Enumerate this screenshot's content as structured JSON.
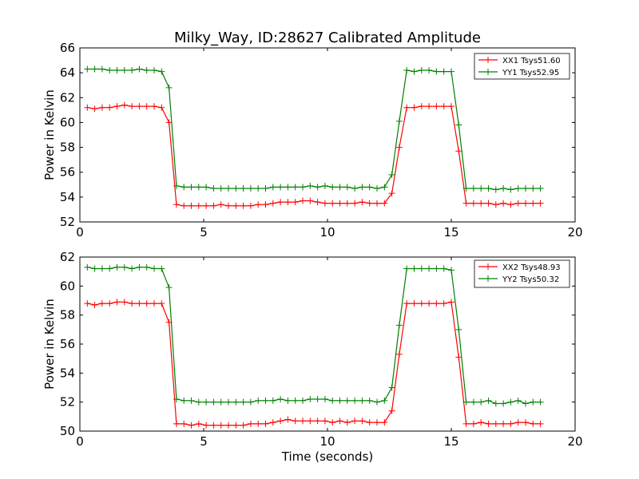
{
  "title": "Milky_Way, ID:28627 Calibrated Amplitude",
  "xlabel": "Time (seconds)",
  "chart_data": [
    {
      "type": "line",
      "ylabel": "Power in Kelvin",
      "xlim": [
        0,
        20
      ],
      "ylim": [
        52,
        66
      ],
      "xticks": [
        0,
        5,
        10,
        15,
        20
      ],
      "yticks": [
        52,
        54,
        56,
        58,
        60,
        62,
        64,
        66
      ],
      "grid": false,
      "legend_position": "top-right",
      "series": [
        {
          "name": "XX1 Tsys51.60",
          "color": "#ff0000",
          "x": [
            0.3,
            0.6,
            0.9,
            1.2,
            1.5,
            1.8,
            2.1,
            2.4,
            2.7,
            3.0,
            3.3,
            3.6,
            3.9,
            4.2,
            4.5,
            4.8,
            5.1,
            5.4,
            5.7,
            6.0,
            6.3,
            6.6,
            6.9,
            7.2,
            7.5,
            7.8,
            8.1,
            8.4,
            8.7,
            9.0,
            9.3,
            9.6,
            9.9,
            10.2,
            10.5,
            10.8,
            11.1,
            11.4,
            11.7,
            12.0,
            12.3,
            12.6,
            12.9,
            13.2,
            13.5,
            13.8,
            14.1,
            14.4,
            14.7,
            15.0,
            15.3,
            15.6,
            15.9,
            16.2,
            16.5,
            16.8,
            17.1,
            17.4,
            17.7,
            18.0,
            18.3,
            18.6
          ],
          "y": [
            61.2,
            61.1,
            61.2,
            61.2,
            61.3,
            61.4,
            61.3,
            61.3,
            61.3,
            61.3,
            61.2,
            60.0,
            53.4,
            53.3,
            53.3,
            53.3,
            53.3,
            53.3,
            53.4,
            53.3,
            53.3,
            53.3,
            53.3,
            53.4,
            53.4,
            53.5,
            53.6,
            53.6,
            53.6,
            53.7,
            53.7,
            53.6,
            53.5,
            53.5,
            53.5,
            53.5,
            53.5,
            53.6,
            53.5,
            53.5,
            53.5,
            54.3,
            58.0,
            61.2,
            61.2,
            61.3,
            61.3,
            61.3,
            61.3,
            61.3,
            57.7,
            53.5,
            53.5,
            53.5,
            53.5,
            53.4,
            53.5,
            53.4,
            53.5,
            53.5,
            53.5,
            53.5
          ]
        },
        {
          "name": "YY1 Tsys52.95",
          "color": "#008000",
          "x": [
            0.3,
            0.6,
            0.9,
            1.2,
            1.5,
            1.8,
            2.1,
            2.4,
            2.7,
            3.0,
            3.3,
            3.6,
            3.9,
            4.2,
            4.5,
            4.8,
            5.1,
            5.4,
            5.7,
            6.0,
            6.3,
            6.6,
            6.9,
            7.2,
            7.5,
            7.8,
            8.1,
            8.4,
            8.7,
            9.0,
            9.3,
            9.6,
            9.9,
            10.2,
            10.5,
            10.8,
            11.1,
            11.4,
            11.7,
            12.0,
            12.3,
            12.6,
            12.9,
            13.2,
            13.5,
            13.8,
            14.1,
            14.4,
            14.7,
            15.0,
            15.3,
            15.6,
            15.9,
            16.2,
            16.5,
            16.8,
            17.1,
            17.4,
            17.7,
            18.0,
            18.3,
            18.6
          ],
          "y": [
            64.3,
            64.3,
            64.3,
            64.2,
            64.2,
            64.2,
            64.2,
            64.3,
            64.2,
            64.2,
            64.1,
            62.8,
            54.9,
            54.8,
            54.8,
            54.8,
            54.8,
            54.7,
            54.7,
            54.7,
            54.7,
            54.7,
            54.7,
            54.7,
            54.7,
            54.8,
            54.8,
            54.8,
            54.8,
            54.8,
            54.9,
            54.8,
            54.9,
            54.8,
            54.8,
            54.8,
            54.7,
            54.8,
            54.8,
            54.7,
            54.8,
            55.8,
            60.1,
            64.2,
            64.1,
            64.2,
            64.2,
            64.1,
            64.1,
            64.1,
            59.8,
            54.7,
            54.7,
            54.7,
            54.7,
            54.6,
            54.7,
            54.6,
            54.7,
            54.7,
            54.7,
            54.7
          ]
        }
      ]
    },
    {
      "type": "line",
      "ylabel": "Power in Kelvin",
      "xlim": [
        0,
        20
      ],
      "ylim": [
        50,
        62
      ],
      "xticks": [
        0,
        5,
        10,
        15,
        20
      ],
      "yticks": [
        50,
        52,
        54,
        56,
        58,
        60,
        62
      ],
      "grid": false,
      "legend_position": "top-right",
      "series": [
        {
          "name": "XX2 Tsys48.93",
          "color": "#ff0000",
          "x": [
            0.3,
            0.6,
            0.9,
            1.2,
            1.5,
            1.8,
            2.1,
            2.4,
            2.7,
            3.0,
            3.3,
            3.6,
            3.9,
            4.2,
            4.5,
            4.8,
            5.1,
            5.4,
            5.7,
            6.0,
            6.3,
            6.6,
            6.9,
            7.2,
            7.5,
            7.8,
            8.1,
            8.4,
            8.7,
            9.0,
            9.3,
            9.6,
            9.9,
            10.2,
            10.5,
            10.8,
            11.1,
            11.4,
            11.7,
            12.0,
            12.3,
            12.6,
            12.9,
            13.2,
            13.5,
            13.8,
            14.1,
            14.4,
            14.7,
            15.0,
            15.3,
            15.6,
            15.9,
            16.2,
            16.5,
            16.8,
            17.1,
            17.4,
            17.7,
            18.0,
            18.3,
            18.6
          ],
          "y": [
            58.8,
            58.7,
            58.8,
            58.8,
            58.9,
            58.9,
            58.8,
            58.8,
            58.8,
            58.8,
            58.8,
            57.5,
            50.5,
            50.5,
            50.4,
            50.5,
            50.4,
            50.4,
            50.4,
            50.4,
            50.4,
            50.4,
            50.5,
            50.5,
            50.5,
            50.6,
            50.7,
            50.8,
            50.7,
            50.7,
            50.7,
            50.7,
            50.7,
            50.6,
            50.7,
            50.6,
            50.7,
            50.7,
            50.6,
            50.6,
            50.6,
            51.4,
            55.3,
            58.8,
            58.8,
            58.8,
            58.8,
            58.8,
            58.8,
            58.9,
            55.1,
            50.5,
            50.5,
            50.6,
            50.5,
            50.5,
            50.5,
            50.5,
            50.6,
            50.6,
            50.5,
            50.5
          ]
        },
        {
          "name": "YY2 Tsys50.32",
          "color": "#008000",
          "x": [
            0.3,
            0.6,
            0.9,
            1.2,
            1.5,
            1.8,
            2.1,
            2.4,
            2.7,
            3.0,
            3.3,
            3.6,
            3.9,
            4.2,
            4.5,
            4.8,
            5.1,
            5.4,
            5.7,
            6.0,
            6.3,
            6.6,
            6.9,
            7.2,
            7.5,
            7.8,
            8.1,
            8.4,
            8.7,
            9.0,
            9.3,
            9.6,
            9.9,
            10.2,
            10.5,
            10.8,
            11.1,
            11.4,
            11.7,
            12.0,
            12.3,
            12.6,
            12.9,
            13.2,
            13.5,
            13.8,
            14.1,
            14.4,
            14.7,
            15.0,
            15.3,
            15.6,
            15.9,
            16.2,
            16.5,
            16.8,
            17.1,
            17.4,
            17.7,
            18.0,
            18.3,
            18.6
          ],
          "y": [
            61.3,
            61.2,
            61.2,
            61.2,
            61.3,
            61.3,
            61.2,
            61.3,
            61.3,
            61.2,
            61.2,
            59.9,
            52.2,
            52.1,
            52.1,
            52.0,
            52.0,
            52.0,
            52.0,
            52.0,
            52.0,
            52.0,
            52.0,
            52.1,
            52.1,
            52.1,
            52.2,
            52.1,
            52.1,
            52.1,
            52.2,
            52.2,
            52.2,
            52.1,
            52.1,
            52.1,
            52.1,
            52.1,
            52.1,
            52.0,
            52.1,
            53.0,
            57.3,
            61.2,
            61.2,
            61.2,
            61.2,
            61.2,
            61.2,
            61.1,
            57.0,
            52.0,
            52.0,
            52.0,
            52.1,
            51.9,
            51.9,
            52.0,
            52.1,
            51.9,
            52.0,
            52.0
          ]
        }
      ]
    }
  ]
}
